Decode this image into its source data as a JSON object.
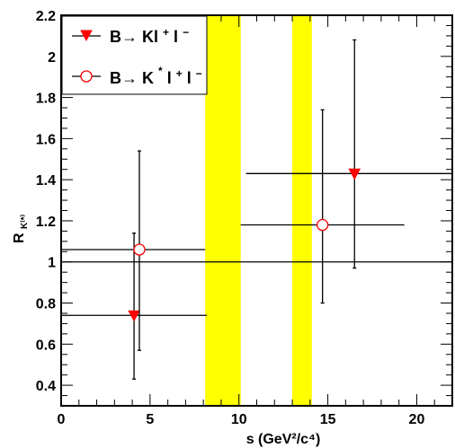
{
  "chart_data": {
    "type": "scatter",
    "title": "",
    "xlabel": "s (GeV²/c⁴)",
    "ylabel": "R",
    "ylabel_subscript": "K⁽*⁾",
    "xlim": [
      0,
      22
    ],
    "ylim": [
      0.3,
      2.2
    ],
    "x_ticks": [
      0,
      5,
      10,
      15,
      20
    ],
    "y_ticks": [
      0.4,
      0.6,
      0.8,
      1.0,
      1.2,
      1.4,
      1.6,
      1.8,
      2.0,
      2.2
    ],
    "y_tick_labels": [
      "0.4",
      "0.6",
      "0.8",
      "1",
      "1.2",
      "1.4",
      "1.6",
      "1.8",
      "2",
      "2.2"
    ],
    "x_tick_labels": [
      "0",
      "5",
      "10",
      "15",
      "20"
    ],
    "reference_line": {
      "y": 1.0
    },
    "vetoed_regions": [
      {
        "x_min": 8.1,
        "x_max": 10.1,
        "color": "#ffff00"
      },
      {
        "x_min": 13.0,
        "x_max": 14.1,
        "color": "#ffff00"
      }
    ],
    "series": [
      {
        "name": "B→ Kl⁺l⁻",
        "name_parts": {
          "pre": "B→ Kl",
          "sup1": "+",
          "mid": "l",
          "sup2": "−"
        },
        "marker": "triangle-down-filled",
        "color": "#ff0000",
        "points": [
          {
            "x": 4.1,
            "y": 0.74,
            "x_err": [
              4.1,
              4.1
            ],
            "y_err": [
              0.31,
              0.4
            ]
          },
          {
            "x": 16.5,
            "y": 1.43,
            "x_err": [
              6.1,
              5.5
            ],
            "y_err": [
              0.46,
              0.65
            ]
          }
        ]
      },
      {
        "name": "B→ K*l⁺l⁻",
        "name_parts": {
          "pre": "B→ K",
          "sup0": "*",
          "mid0": "l",
          "sup1": "+",
          "mid": "l",
          "sup2": "−"
        },
        "marker": "circle-open",
        "color": "#ff0000",
        "points": [
          {
            "x": 4.4,
            "y": 1.06,
            "x_err": [
              4.4,
              3.7
            ],
            "y_err": [
              0.49,
              0.48
            ]
          },
          {
            "x": 14.7,
            "y": 1.18,
            "x_err": [
              4.6,
              4.6
            ],
            "y_err": [
              0.38,
              0.56
            ]
          }
        ]
      }
    ],
    "legend": {
      "placement": "top-left"
    },
    "grid": false
  }
}
